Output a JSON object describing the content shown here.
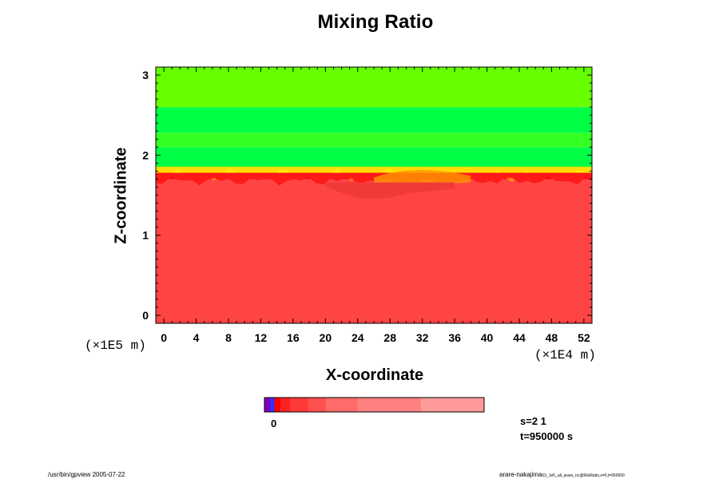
{
  "chart_data": {
    "type": "heatmap",
    "title": "Mixing Ratio",
    "xlabel": "X-coordinate",
    "ylabel": "Z-coordinate",
    "x_unit": "(×1E4 m)",
    "y_unit": "(×1E5 m)",
    "xlim": [
      -1,
      53
    ],
    "ylim": [
      -0.1,
      3.1
    ],
    "x_ticks": [
      "0",
      "4",
      "8",
      "12",
      "16",
      "20",
      "24",
      "28",
      "32",
      "36",
      "40",
      "44",
      "48",
      "52"
    ],
    "y_ticks": [
      "0",
      "1",
      "2",
      "3"
    ],
    "layers": [
      {
        "z_from": -0.1,
        "z_to": 1.7,
        "color": "#ff4444"
      },
      {
        "z_from": 1.7,
        "z_to": 1.78,
        "color": "#ff0000"
      },
      {
        "z_from": 1.78,
        "z_to": 1.85,
        "color": "#ffee00"
      },
      {
        "z_from": 1.85,
        "z_to": 2.1,
        "color": "#00ff44"
      },
      {
        "z_from": 2.1,
        "z_to": 2.28,
        "color": "#33ff22"
      },
      {
        "z_from": 2.28,
        "z_to": 2.6,
        "color": "#00ff44"
      },
      {
        "z_from": 2.6,
        "z_to": 3.1,
        "color": "#66ff00"
      }
    ],
    "colorbar": {
      "first_label": "0",
      "colors": [
        "#8000c0",
        "#3030ff",
        "#ff0000",
        "#ff2020",
        "#ff3838",
        "#ff5050",
        "#ff6a6a",
        "#ff8080",
        "#ff9a9a"
      ],
      "widths": [
        1.5,
        1,
        1.5,
        2.5,
        4.5,
        4.5,
        8,
        16,
        16
      ]
    },
    "annotations": {
      "step": "s=2 1",
      "time": "t=950000 s"
    }
  },
  "footer": {
    "left": "/usr/bin/gpview 2005-07-22",
    "right_main": "arare-nakajima",
    "right_sub": "03_1e5_all_arare_nc@MixRatio,x=0,t=950000"
  }
}
